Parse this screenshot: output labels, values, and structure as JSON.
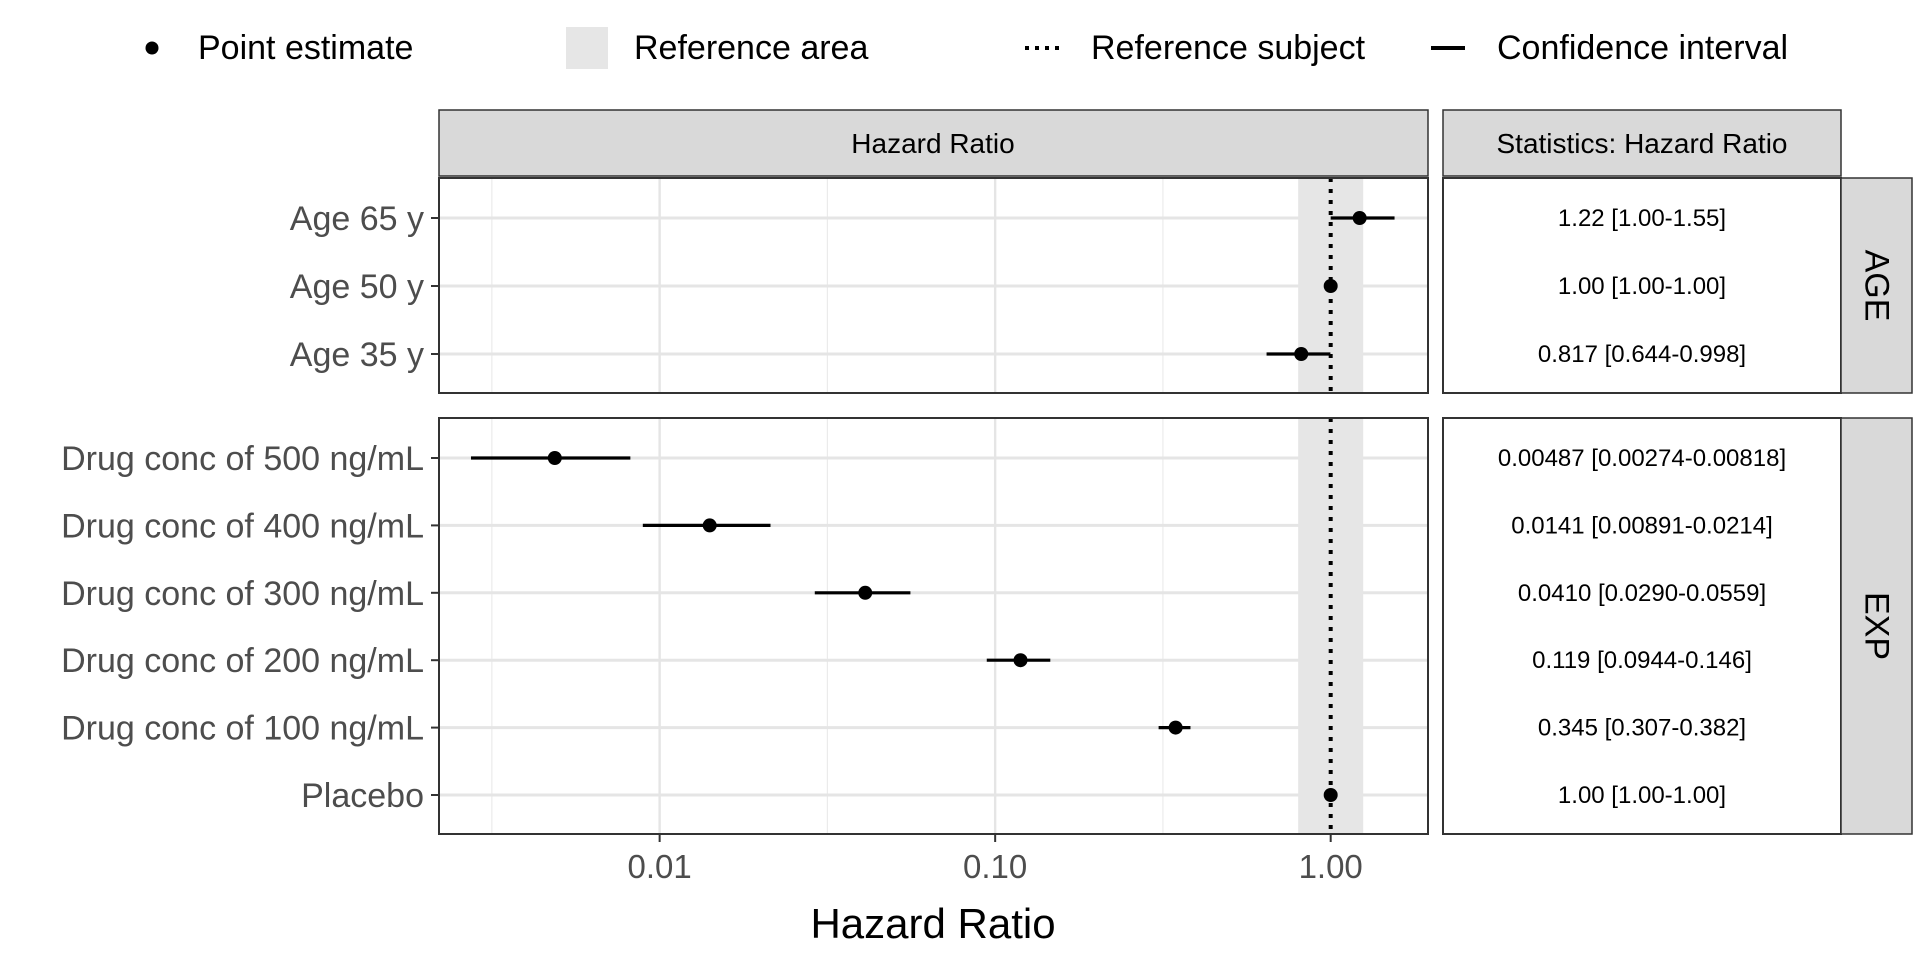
{
  "legend": {
    "point_estimate": "Point estimate",
    "reference_area": "Reference area",
    "reference_subject": "Reference subject",
    "confidence_interval": "Confidence interval"
  },
  "strips": {
    "forest": "Hazard Ratio",
    "stats": "Statistics: Hazard Ratio"
  },
  "x_axis_title": "Hazard Ratio",
  "chart_data": {
    "type": "forest",
    "x_scale": "log10",
    "xlim": [
      0.0022,
      1.95
    ],
    "x_ticks": [
      {
        "value": 0.01,
        "label": "0.01"
      },
      {
        "value": 0.1,
        "label": "0.10"
      },
      {
        "value": 1,
        "label": "1.00"
      }
    ],
    "reference_value": 1.0,
    "reference_area": [
      0.8,
      1.25
    ],
    "grid": true,
    "legend_position": "top",
    "panels": [
      {
        "name": "AGE",
        "rows": [
          {
            "label": "Age 65 y",
            "estimate": 1.22,
            "lower": 1.0,
            "upper": 1.55,
            "stat_text": "1.22 [1.00-1.55]"
          },
          {
            "label": "Age 50 y",
            "estimate": 1.0,
            "lower": 1.0,
            "upper": 1.0,
            "stat_text": "1.00 [1.00-1.00]"
          },
          {
            "label": "Age 35 y",
            "estimate": 0.817,
            "lower": 0.644,
            "upper": 0.998,
            "stat_text": "0.817 [0.644-0.998]"
          }
        ]
      },
      {
        "name": "EXP",
        "rows": [
          {
            "label": "Drug conc of 500 ng/mL",
            "estimate": 0.00487,
            "lower": 0.00274,
            "upper": 0.00818,
            "stat_text": "0.00487 [0.00274-0.00818]"
          },
          {
            "label": "Drug conc of 400 ng/mL",
            "estimate": 0.0141,
            "lower": 0.00891,
            "upper": 0.0214,
            "stat_text": "0.0141 [0.00891-0.0214]"
          },
          {
            "label": "Drug conc of 300 ng/mL",
            "estimate": 0.041,
            "lower": 0.029,
            "upper": 0.0559,
            "stat_text": "0.0410 [0.0290-0.0559]"
          },
          {
            "label": "Drug conc of 200 ng/mL",
            "estimate": 0.119,
            "lower": 0.0944,
            "upper": 0.146,
            "stat_text": "0.119 [0.0944-0.146]"
          },
          {
            "label": "Drug conc of 100 ng/mL",
            "estimate": 0.345,
            "lower": 0.307,
            "upper": 0.382,
            "stat_text": "0.345 [0.307-0.382]"
          },
          {
            "label": "Placebo",
            "estimate": 1.0,
            "lower": 1.0,
            "upper": 1.0,
            "stat_text": "1.00 [1.00-1.00]"
          }
        ]
      }
    ]
  }
}
